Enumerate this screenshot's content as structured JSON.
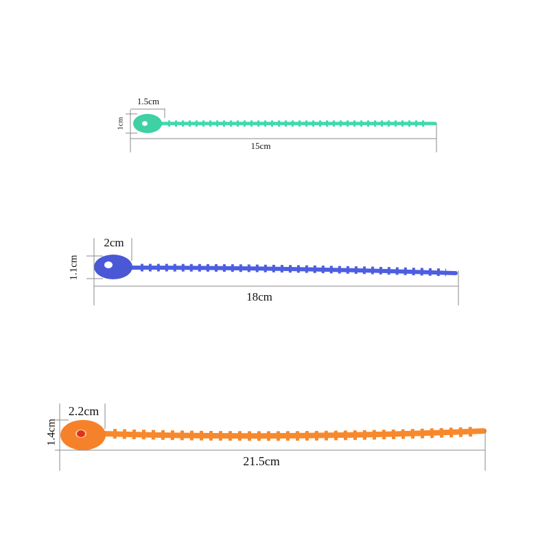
{
  "ties": [
    {
      "head_width": "1.5cm",
      "head_height": "1cm",
      "length": "15cm"
    },
    {
      "head_width": "2cm",
      "head_height": "1.1cm",
      "length": "18cm"
    },
    {
      "head_width": "2.2cm",
      "head_height": "1.4cm",
      "length": "21.5cm"
    }
  ]
}
